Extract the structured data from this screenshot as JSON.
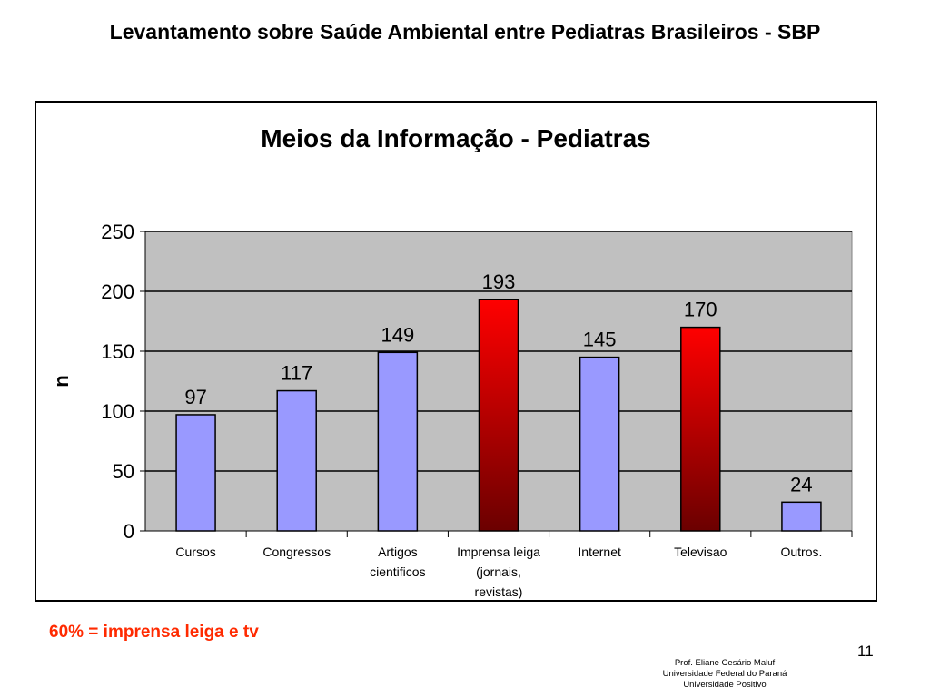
{
  "slide": {
    "title": "Levantamento sobre Saúde Ambiental entre Pediatras Brasileiros - SBP",
    "note": "60% = imprensa leiga e tv",
    "page_number": "11",
    "credits": [
      "Prof. Eliane Cesário Maluf",
      "Universidade Federal do Paraná",
      "Universidade Positivo"
    ]
  },
  "chart_data": {
    "type": "bar",
    "title": "Meios da Informação - Pediatras",
    "xlabel": "",
    "ylabel": "n",
    "ylim": [
      0,
      250
    ],
    "yticks": [
      0,
      50,
      100,
      150,
      200,
      250
    ],
    "grid": true,
    "legend": "none",
    "categories": [
      [
        "Cursos"
      ],
      [
        "Congressos"
      ],
      [
        "Artigos",
        "cientificos"
      ],
      [
        "Imprensa leiga",
        "(jornais,",
        "revistas)"
      ],
      [
        "Internet"
      ],
      [
        "Televisao"
      ],
      [
        "Outros."
      ]
    ],
    "values": [
      97,
      117,
      149,
      193,
      145,
      170,
      24
    ],
    "highlight": [
      false,
      false,
      false,
      true,
      false,
      true,
      false
    ],
    "colors": {
      "bar": "#9999ff",
      "highlight_top": "#ff0000",
      "highlight_bottom": "#6b0000",
      "plot_background": "#c0c0c0"
    }
  }
}
